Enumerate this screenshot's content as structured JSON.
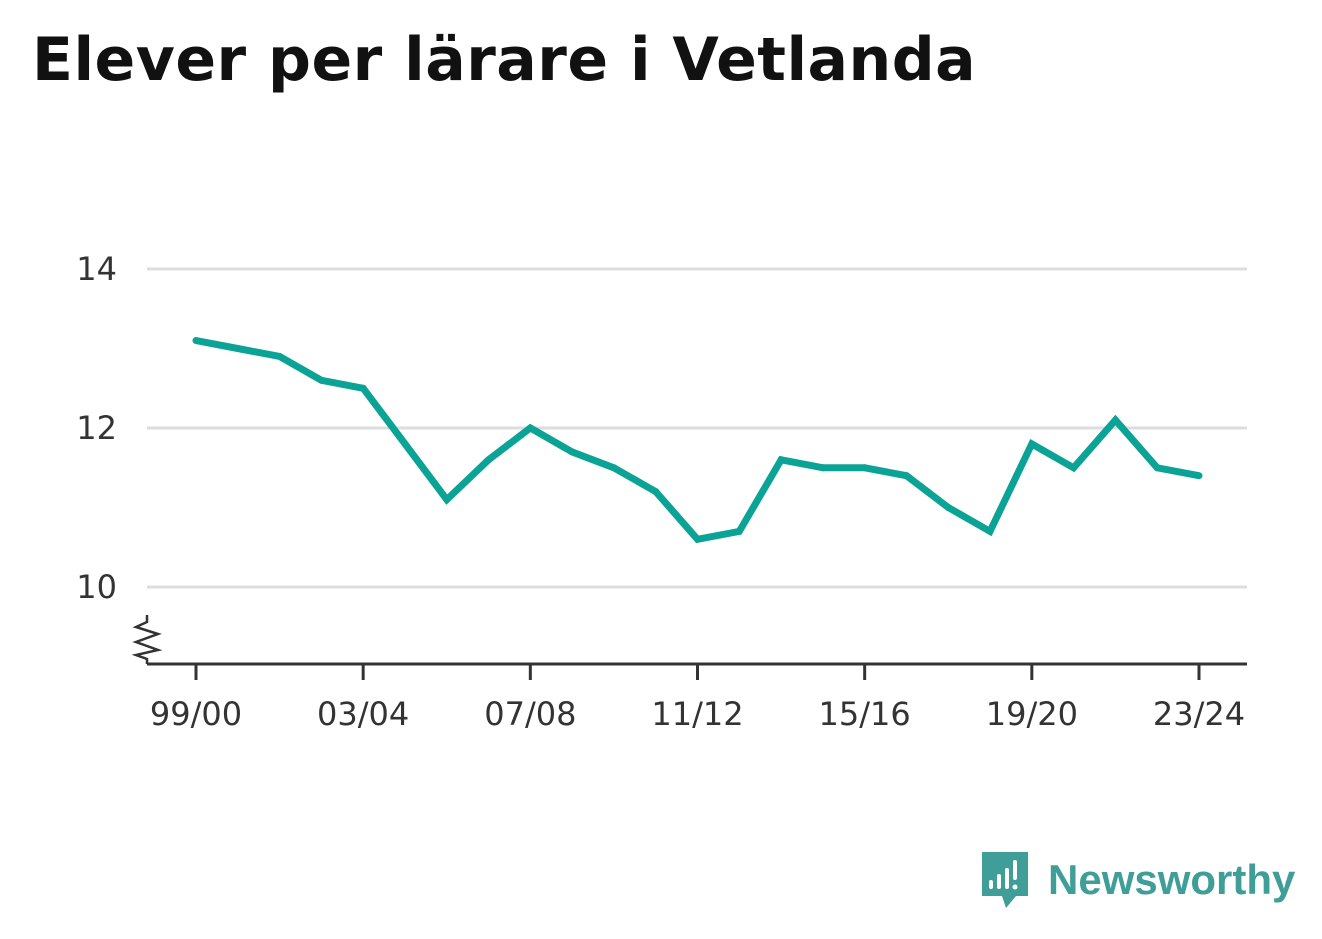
{
  "title": "Elever per lärare i Vetlanda",
  "brand": {
    "name": "Newsworthy",
    "icon": "newsworthy-logo-icon",
    "color": "#3f9e97"
  },
  "colors": {
    "line": "#0ca397",
    "grid": "#dddddd",
    "axis": "#333333"
  },
  "chart_data": {
    "type": "line",
    "title": "Elever per lärare i Vetlanda",
    "x": [
      "99/00",
      "00/01",
      "01/02",
      "02/03",
      "03/04",
      "04/05",
      "05/06",
      "06/07",
      "07/08",
      "08/09",
      "09/10",
      "10/11",
      "11/12",
      "12/13",
      "13/14",
      "14/15",
      "15/16",
      "16/17",
      "17/18",
      "18/19",
      "19/20",
      "20/21",
      "21/22",
      "22/23",
      "23/24"
    ],
    "x_tick_labels": [
      "99/00",
      "03/04",
      "07/08",
      "11/12",
      "15/16",
      "19/20",
      "23/24"
    ],
    "series": [
      {
        "values": [
          13.1,
          13.0,
          12.9,
          12.6,
          12.5,
          11.8,
          11.1,
          11.6,
          12.0,
          11.7,
          11.5,
          11.2,
          10.6,
          10.7,
          11.6,
          11.5,
          11.5,
          11.4,
          11.0,
          10.7,
          11.8,
          11.5,
          12.1,
          11.5,
          11.4
        ]
      }
    ],
    "y_ticks": [
      10,
      12,
      14
    ],
    "y_tick_labels": [
      "10",
      "12",
      "14"
    ],
    "ylim": [
      9,
      14
    ],
    "y_axis_break": true,
    "grid": "horizontal",
    "legend": "none",
    "xlabel": "",
    "ylabel": ""
  }
}
